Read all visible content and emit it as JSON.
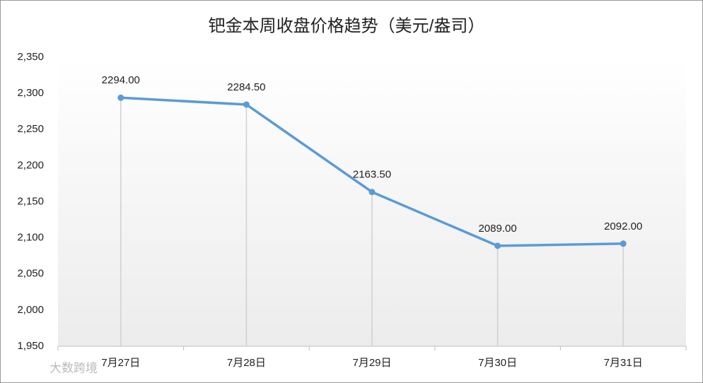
{
  "chart_data": {
    "type": "line",
    "title": "钯金本周收盘价格趋势（美元/盎司）",
    "categories": [
      "7月27日",
      "7月28日",
      "7月29日",
      "7月30日",
      "7月31日"
    ],
    "values": [
      2294,
      2284.5,
      2163.5,
      2089,
      2092
    ],
    "value_labels": [
      "2294.00",
      "2284.50",
      "2163.50",
      "2089.00",
      "2092.00"
    ],
    "color": "#5b9bd5",
    "ylim": [
      1950,
      2350
    ],
    "yticks": [
      {
        "value": 1950,
        "label": "1,950"
      },
      {
        "value": 2000,
        "label": "2,000"
      },
      {
        "value": 2050,
        "label": "2,050"
      },
      {
        "value": 2100,
        "label": "2,100"
      },
      {
        "value": 2150,
        "label": "2,150"
      },
      {
        "value": 2200,
        "label": "2,200"
      },
      {
        "value": 2250,
        "label": "2,250"
      },
      {
        "value": 2300,
        "label": "2,300"
      },
      {
        "value": 2350,
        "label": "2,350"
      }
    ],
    "drop_lines": true,
    "watermark": "大数跨境"
  }
}
